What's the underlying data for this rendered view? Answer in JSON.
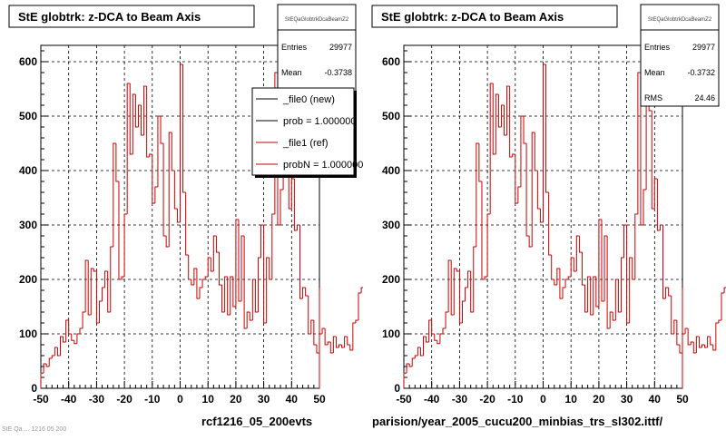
{
  "panels": [
    {
      "title": "StE globtrk: z-DCA to Beam Axis",
      "stats": {
        "name": "StEQaGlobtrkDcaBeamZ2",
        "rows": [
          {
            "label": "Entries",
            "value": "29977"
          },
          {
            "label": "Mean",
            "value": "-0.3738"
          }
        ]
      },
      "legend": [
        {
          "text": "_file0 (new)",
          "color": "#000000"
        },
        {
          "text": "prob = 1.000000",
          "color": "#000000"
        },
        {
          "text": "_file1 (ref)",
          "color": "#cc0000"
        },
        {
          "text": "probN = 1.000000",
          "color": "#cc0000"
        }
      ],
      "footer": "rcf1216_05_200evts"
    },
    {
      "title": "StE globtrk: z-DCA to Beam Axis",
      "stats": {
        "name": "StEQaGlobtrkDcaBeamZ2",
        "rows": [
          {
            "label": "Entries",
            "value": "29977"
          },
          {
            "label": "Mean",
            "value": "-0.3732"
          },
          {
            "label": "RMS",
            "value": "24.46"
          }
        ]
      },
      "legend": [],
      "footer": "parision/year_2005_cucu200_minbias_trs_sl302.ittf/"
    }
  ],
  "small_text": "StE Qa ... 1216 05 200",
  "chart_data": {
    "type": "bar",
    "style": "step-histogram",
    "xlim": [
      -50,
      50
    ],
    "ylim": [
      0,
      630
    ],
    "xticks": [
      -50,
      -40,
      -30,
      -20,
      -10,
      0,
      10,
      20,
      30,
      40,
      50
    ],
    "yticks": [
      0,
      100,
      200,
      300,
      400,
      500,
      600
    ],
    "grid": true,
    "line_color": "#cc0000",
    "bin_width": 1,
    "x_start": -50,
    "values": [
      28,
      45,
      40,
      55,
      60,
      75,
      60,
      95,
      85,
      125,
      100,
      88,
      82,
      100,
      110,
      140,
      235,
      135,
      220,
      215,
      120,
      160,
      185,
      215,
      140,
      260,
      450,
      380,
      200,
      205,
      320,
      560,
      430,
      540,
      480,
      520,
      465,
      555,
      425,
      430,
      340,
      370,
      500,
      450,
      280,
      260,
      470,
      400,
      330,
      305,
      595,
      360,
      245,
      200,
      190,
      220,
      165,
      185,
      200,
      205,
      240,
      215,
      280,
      250,
      190,
      140,
      205,
      135,
      205,
      150,
      310,
      160,
      280,
      110,
      140,
      125,
      200,
      140,
      240,
      300,
      120,
      240,
      200,
      320,
      580,
      300,
      365,
      530,
      510,
      330,
      385,
      290,
      300,
      165,
      185,
      170,
      100,
      125,
      80,
      65,
      100,
      110,
      80,
      85,
      65,
      95,
      75,
      80,
      75,
      95,
      80,
      70,
      120,
      125,
      175,
      185
    ]
  }
}
